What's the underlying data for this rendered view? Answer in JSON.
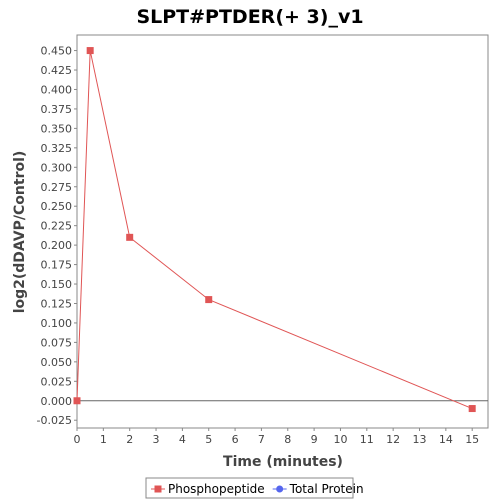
{
  "chart_data": {
    "type": "line",
    "title": "SLPT#PTDER(+ 3)_v1",
    "xlabel": "Time (minutes)",
    "ylabel": "log2(dDAVP/Control)",
    "xlim": [
      0,
      15.6
    ],
    "ylim": [
      -0.035,
      0.47
    ],
    "xticks": [
      "0",
      "1",
      "2",
      "3",
      "4",
      "5",
      "6",
      "7",
      "8",
      "9",
      "10",
      "11",
      "12",
      "13",
      "14",
      "15"
    ],
    "yticks": [
      "-0.025",
      "0.000",
      "0.025",
      "0.050",
      "0.075",
      "0.100",
      "0.125",
      "0.150",
      "0.175",
      "0.200",
      "0.225",
      "0.250",
      "0.275",
      "0.300",
      "0.325",
      "0.350",
      "0.375",
      "0.400",
      "0.425",
      "0.450"
    ],
    "grid": false,
    "legend_position": "bottom",
    "series": [
      {
        "name": "Phosphopeptide",
        "color": "#e05555",
        "marker": "square",
        "x": [
          0,
          0.5,
          2,
          5,
          15
        ],
        "y": [
          0.0,
          0.45,
          0.21,
          0.13,
          -0.01
        ]
      },
      {
        "name": "Total Protein",
        "color": "#5566ee",
        "marker": "circle",
        "x": [],
        "y": []
      }
    ]
  }
}
